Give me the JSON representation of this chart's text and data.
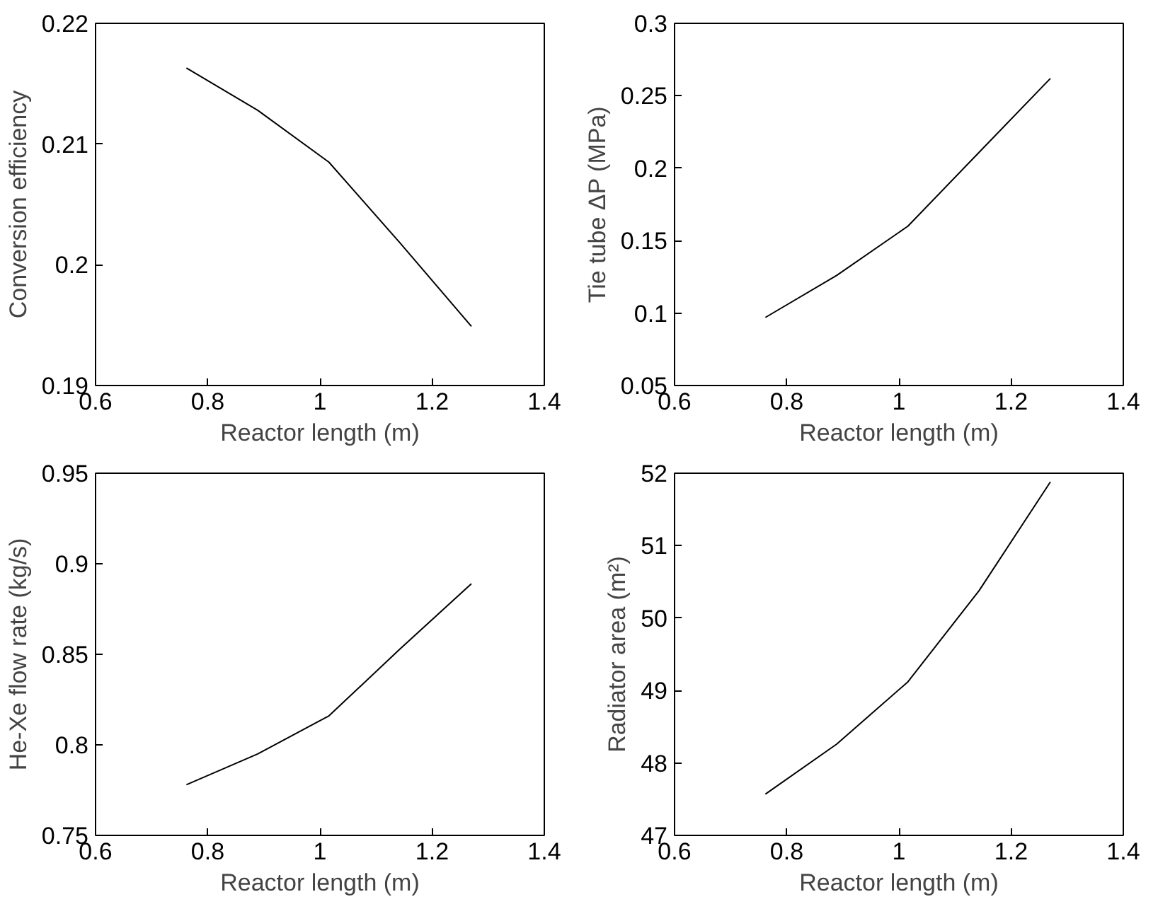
{
  "chart_data": [
    {
      "type": "line",
      "xlabel": "Reactor length (m)",
      "ylabel": "Conversion efficiency",
      "color": "#000000",
      "x": [
        0.762,
        0.889,
        1.016,
        1.143,
        1.27
      ],
      "values": [
        0.2163,
        0.2128,
        0.2085,
        0.2018,
        0.1949
      ],
      "xlim": [
        0.6,
        1.4
      ],
      "xticks": [
        0.6,
        0.8,
        1,
        1.2,
        1.4
      ],
      "ylim": [
        0.19,
        0.22
      ],
      "yticks": [
        0.19,
        0.2,
        0.21,
        0.22
      ],
      "grid": false
    },
    {
      "type": "line",
      "xlabel": "Reactor length (m)",
      "ylabel": "Tie tube ΔP (MPa)",
      "color": "#000000",
      "x": [
        0.762,
        0.889,
        1.016,
        1.143,
        1.27
      ],
      "values": [
        0.097,
        0.126,
        0.16,
        0.211,
        0.262
      ],
      "xlim": [
        0.6,
        1.4
      ],
      "xticks": [
        0.6,
        0.8,
        1,
        1.2,
        1.4
      ],
      "ylim": [
        0.05,
        0.3
      ],
      "yticks": [
        0.05,
        0.1,
        0.15,
        0.2,
        0.25,
        0.3
      ],
      "grid": false
    },
    {
      "type": "line",
      "xlabel": "Reactor length (m)",
      "ylabel": "He-Xe flow rate (kg/s)",
      "color": "#000000",
      "x": [
        0.762,
        0.889,
        1.016,
        1.143,
        1.27
      ],
      "values": [
        0.778,
        0.795,
        0.816,
        0.853,
        0.889
      ],
      "xlim": [
        0.6,
        1.4
      ],
      "xticks": [
        0.6,
        0.8,
        1,
        1.2,
        1.4
      ],
      "ylim": [
        0.75,
        0.95
      ],
      "yticks": [
        0.75,
        0.8,
        0.85,
        0.9,
        0.95
      ],
      "grid": false
    },
    {
      "type": "line",
      "xlabel": "Reactor length (m)",
      "ylabel": "Radiator area (m²)",
      "color": "#000000",
      "x": [
        0.762,
        0.889,
        1.016,
        1.143,
        1.27
      ],
      "values": [
        47.57,
        48.26,
        49.12,
        50.38,
        51.88
      ],
      "xlim": [
        0.6,
        1.4
      ],
      "xticks": [
        0.6,
        0.8,
        1,
        1.2,
        1.4
      ],
      "ylim": [
        47,
        52
      ],
      "yticks": [
        47,
        48,
        49,
        50,
        51,
        52
      ],
      "grid": false
    }
  ]
}
